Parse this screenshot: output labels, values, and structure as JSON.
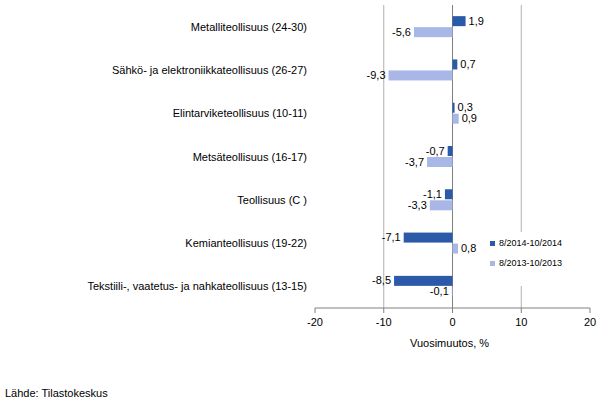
{
  "chart_data": {
    "type": "bar",
    "orientation": "horizontal",
    "categories": [
      "Metalliteollisuus (24-30)",
      "Sähkö- ja elektroniikkateollisuus (26-27)",
      "Elintarviketeollisuus (10-11)",
      "Metsäteollisuus (16-17)",
      "Teollisuus (C )",
      "Kemianteollisuus (19-22)",
      "Tekstiili-, vaatetus- ja nahkateollisuus (13-15)"
    ],
    "series": [
      {
        "name": "8/2014-10/2014",
        "color": "#2a5aa8",
        "values": [
          1.9,
          0.7,
          0.3,
          -0.7,
          -1.1,
          -7.1,
          -8.5
        ],
        "value_labels": [
          "1,9",
          "0,7",
          "0,3",
          "-0,7",
          "-1,1",
          "-7,1",
          "-8,5"
        ]
      },
      {
        "name": "8/2013-10/2013",
        "color": "#a8b7e6",
        "values": [
          -5.6,
          -9.3,
          0.9,
          -3.7,
          -3.3,
          0.8,
          -0.1
        ],
        "value_labels": [
          "-5,6",
          "-9,3",
          "0,9",
          "-3,7",
          "-3,3",
          "0,8",
          "-0,1"
        ]
      }
    ],
    "x_label": "Vuosimuutos, %",
    "source": "Lähde: Tilastokeskus",
    "xlim": [
      -20,
      20
    ],
    "xticks": [
      -20,
      -10,
      0,
      10,
      20
    ],
    "grid": true,
    "legend": "right",
    "data_labels": true
  }
}
